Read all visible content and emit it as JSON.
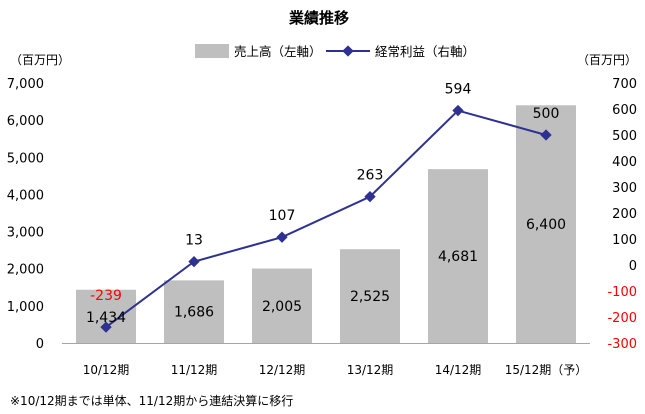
{
  "chart_data": {
    "type": "bar+line",
    "title": "業績推移",
    "left_unit": "（百万円）",
    "right_unit": "（百万円）",
    "categories": [
      "10/12期",
      "11/12期",
      "12/12期",
      "13/12期",
      "14/12期",
      "15/12期（予）"
    ],
    "series": [
      {
        "name": "売上高（左軸）",
        "kind": "bar",
        "axis": "left",
        "values": [
          1434,
          1686,
          2005,
          2525,
          4681,
          6400
        ],
        "labels": [
          "1,434",
          "1,686",
          "2,005",
          "2,525",
          "4,681",
          "6,400"
        ],
        "color": "#bfbfbf"
      },
      {
        "name": "経常利益（右軸）",
        "kind": "line",
        "axis": "right",
        "values": [
          -239,
          13,
          107,
          263,
          594,
          500
        ],
        "labels": [
          "-239",
          "13",
          "107",
          "263",
          "594",
          "500"
        ],
        "color": "#2e3192",
        "negative_label_color": "#ff0000"
      }
    ],
    "left_axis": {
      "min": 0,
      "max": 7000,
      "ticks": [
        0,
        1000,
        2000,
        3000,
        4000,
        5000,
        6000,
        7000
      ],
      "tick_labels": [
        "0",
        "1,000",
        "2,000",
        "3,000",
        "4,000",
        "5,000",
        "6,000",
        "7,000"
      ]
    },
    "right_axis": {
      "min": -300,
      "max": 700,
      "ticks": [
        -300,
        -200,
        -100,
        0,
        100,
        200,
        300,
        400,
        500,
        600,
        700
      ],
      "tick_labels": [
        "-300",
        "-200",
        "-100",
        "0",
        "100",
        "200",
        "300",
        "400",
        "500",
        "600",
        "700"
      ],
      "negative_tick_color": "#ff0000"
    },
    "legend_position": "top",
    "grid": false
  },
  "footnote": "※10/12期までは単体、11/12期から連結決算に移行"
}
